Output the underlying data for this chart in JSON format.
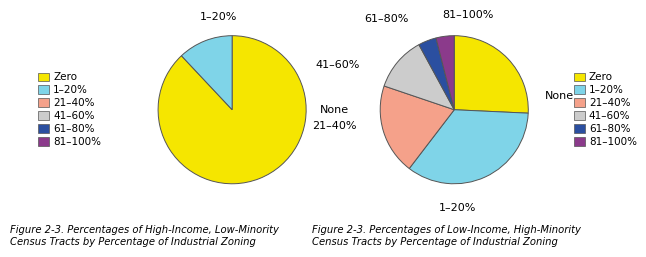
{
  "chart1": {
    "title": "Figure 2-3. Percentages of High-Income, Low-Minority\nCensus Tracts by Percentage of Industrial Zoning",
    "values": [
      88,
      12
    ],
    "colors": [
      "#f5e600",
      "#7fd4e8"
    ],
    "slice_labels": [
      "None",
      "1–20%"
    ]
  },
  "chart2": {
    "title": "Figure 2-3. Percentages of Low-Income, High-Minority\nCensus Tracts by Percentage of Industrial Zoning",
    "values": [
      26,
      35,
      20,
      12,
      4,
      4
    ],
    "colors": [
      "#f5e600",
      "#7fd4e8",
      "#f5a18a",
      "#cccccc",
      "#2b4fa0",
      "#8b3a8b"
    ],
    "slice_labels": [
      "None",
      "1–20%",
      "21–40%",
      "41–60%",
      "61–80%",
      "81–100%"
    ]
  },
  "legend_labels": [
    "Zero",
    "1–20%",
    "21–40%",
    "41–60%",
    "61–80%",
    "81–100%"
  ],
  "colors": [
    "#f5e600",
    "#7fd4e8",
    "#f5a18a",
    "#cccccc",
    "#2b4fa0",
    "#8b3a8b"
  ],
  "background_color": "#ffffff",
  "caption_fontsize": 7.2,
  "legend_fontsize": 7.5,
  "label_fontsize": 8.0
}
